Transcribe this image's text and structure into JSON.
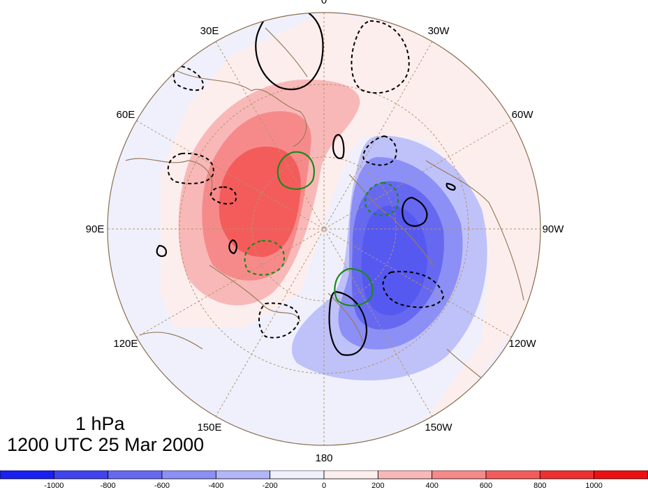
{
  "map": {
    "longitude_labels": [
      {
        "text": "0",
        "angle": 0
      },
      {
        "text": "30W",
        "angle": 30
      },
      {
        "text": "60W",
        "angle": 60
      },
      {
        "text": "90W",
        "angle": 90
      },
      {
        "text": "120W",
        "angle": 120
      },
      {
        "text": "150W",
        "angle": 150
      },
      {
        "text": "180",
        "angle": 180
      },
      {
        "text": "150E",
        "angle": 210
      },
      {
        "text": "120E",
        "angle": 240
      },
      {
        "text": "90E",
        "angle": 270
      },
      {
        "text": "60E",
        "angle": 300
      },
      {
        "text": "30E",
        "angle": 330
      }
    ],
    "colors": {
      "positive": [
        "#fdeeee",
        "#f9b8b8",
        "#f68a8a",
        "#f45c5c"
      ],
      "negative": [
        "#eff0fc",
        "#bfc1f9",
        "#8c8ff5",
        "#5659f0"
      ],
      "solid_contour": "#000000",
      "dashed_contour": "#000000",
      "green_contour": "#1a8a1a",
      "coast": "#9a7c5c",
      "graticule": "#b5936a"
    }
  },
  "info": {
    "level": "1 hPa",
    "time": "1200 UTC 25 Mar 2000"
  },
  "colorbar": {
    "colors": [
      "#1a1ff2",
      "#4043ee",
      "#6669f0",
      "#8c8ff5",
      "#b3b5f9",
      "#eff0fc",
      "#fdeeee",
      "#f9b8b8",
      "#f68a8a",
      "#f45c5c",
      "#f03030",
      "#ee1010"
    ],
    "labels": [
      "-1000",
      "-800",
      "-600",
      "-400",
      "-200",
      "0",
      "200",
      "400",
      "600",
      "800",
      "1000"
    ]
  }
}
